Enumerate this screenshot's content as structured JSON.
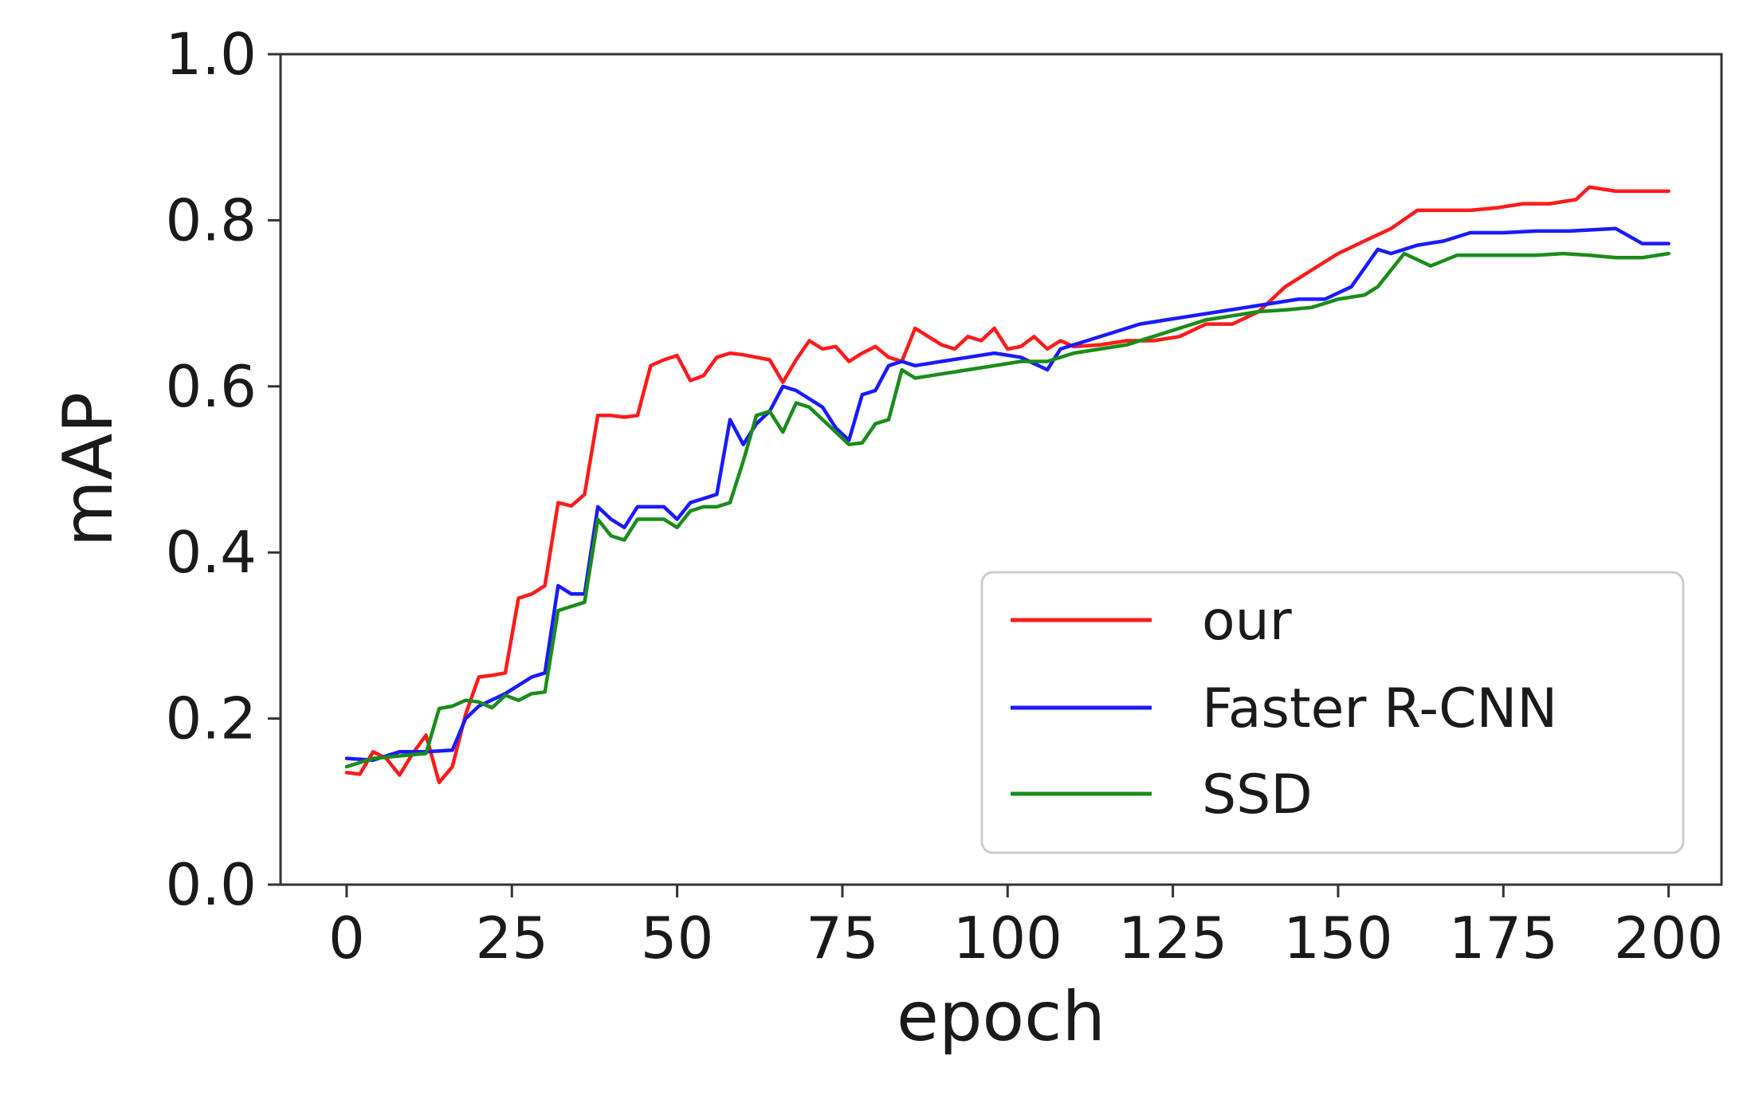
{
  "chart_data": {
    "type": "line",
    "title": "",
    "xlabel": "epoch",
    "ylabel": "mAP",
    "xlim": [
      -10,
      208
    ],
    "ylim": [
      0.0,
      1.0
    ],
    "xticks": [
      "0",
      "25",
      "50",
      "75",
      "100",
      "125",
      "150",
      "175",
      "200"
    ],
    "yticks": [
      "0.0",
      "0.2",
      "0.4",
      "0.6",
      "0.8",
      "1.0"
    ],
    "grid": false,
    "legend_position": "lower-right",
    "series": [
      {
        "name": "our",
        "color": "#ff1a1a",
        "x": [
          0,
          2,
          4,
          6,
          8,
          10,
          12,
          14,
          16,
          18,
          20,
          22,
          24,
          26,
          28,
          30,
          32,
          34,
          36,
          38,
          40,
          42,
          44,
          46,
          48,
          50,
          52,
          54,
          56,
          58,
          60,
          62,
          64,
          66,
          68,
          70,
          72,
          74,
          76,
          78,
          80,
          82,
          84,
          86,
          88,
          90,
          92,
          94,
          96,
          98,
          100,
          102,
          104,
          106,
          108,
          110,
          114,
          118,
          122,
          126,
          130,
          134,
          138,
          142,
          146,
          150,
          154,
          158,
          162,
          166,
          170,
          174,
          178,
          182,
          186,
          188,
          192,
          196,
          200
        ],
        "values": [
          0.135,
          0.133,
          0.16,
          0.152,
          0.132,
          0.158,
          0.18,
          0.123,
          0.142,
          0.205,
          0.25,
          0.252,
          0.255,
          0.345,
          0.35,
          0.36,
          0.46,
          0.456,
          0.47,
          0.565,
          0.565,
          0.563,
          0.565,
          0.625,
          0.632,
          0.637,
          0.607,
          0.613,
          0.635,
          0.64,
          0.638,
          0.635,
          0.632,
          0.605,
          0.632,
          0.655,
          0.645,
          0.648,
          0.63,
          0.64,
          0.648,
          0.635,
          0.63,
          0.67,
          0.66,
          0.65,
          0.645,
          0.66,
          0.655,
          0.67,
          0.645,
          0.648,
          0.66,
          0.645,
          0.655,
          0.648,
          0.65,
          0.655,
          0.655,
          0.66,
          0.675,
          0.675,
          0.69,
          0.72,
          0.74,
          0.76,
          0.775,
          0.79,
          0.812,
          0.812,
          0.812,
          0.815,
          0.82,
          0.82,
          0.825,
          0.84,
          0.835,
          0.835,
          0.835
        ]
      },
      {
        "name": "Faster R-CNN",
        "color": "#1a1aff",
        "x": [
          0,
          4,
          8,
          12,
          16,
          18,
          20,
          24,
          28,
          30,
          32,
          34,
          36,
          38,
          40,
          42,
          44,
          46,
          48,
          50,
          52,
          54,
          56,
          58,
          60,
          62,
          64,
          66,
          68,
          70,
          72,
          74,
          76,
          78,
          80,
          82,
          84,
          86,
          90,
          94,
          98,
          102,
          106,
          108,
          112,
          116,
          120,
          124,
          128,
          132,
          136,
          140,
          144,
          148,
          152,
          156,
          158,
          162,
          166,
          170,
          175,
          180,
          185,
          192,
          196,
          200
        ],
        "values": [
          0.152,
          0.15,
          0.16,
          0.16,
          0.162,
          0.2,
          0.215,
          0.23,
          0.25,
          0.255,
          0.36,
          0.35,
          0.35,
          0.455,
          0.44,
          0.43,
          0.455,
          0.455,
          0.455,
          0.44,
          0.46,
          0.465,
          0.47,
          0.56,
          0.53,
          0.555,
          0.57,
          0.6,
          0.595,
          0.585,
          0.575,
          0.55,
          0.535,
          0.59,
          0.595,
          0.625,
          0.63,
          0.625,
          0.63,
          0.635,
          0.64,
          0.635,
          0.62,
          0.645,
          0.655,
          0.665,
          0.675,
          0.68,
          0.685,
          0.69,
          0.695,
          0.7,
          0.705,
          0.705,
          0.72,
          0.765,
          0.76,
          0.77,
          0.775,
          0.785,
          0.785,
          0.787,
          0.787,
          0.79,
          0.772,
          0.772
        ]
      },
      {
        "name": "SSD",
        "color": "#1a8c1a",
        "x": [
          0,
          4,
          8,
          12,
          14,
          16,
          18,
          20,
          22,
          24,
          26,
          28,
          30,
          32,
          34,
          36,
          38,
          40,
          42,
          44,
          46,
          48,
          50,
          52,
          54,
          56,
          58,
          60,
          62,
          64,
          66,
          68,
          70,
          72,
          74,
          76,
          78,
          80,
          82,
          84,
          86,
          90,
          94,
          98,
          102,
          106,
          110,
          114,
          118,
          122,
          126,
          130,
          134,
          138,
          142,
          146,
          150,
          154,
          156,
          160,
          164,
          168,
          172,
          176,
          180,
          184,
          188,
          192,
          196,
          200
        ],
        "values": [
          0.142,
          0.152,
          0.155,
          0.158,
          0.212,
          0.215,
          0.222,
          0.22,
          0.213,
          0.228,
          0.222,
          0.23,
          0.232,
          0.33,
          0.335,
          0.34,
          0.44,
          0.42,
          0.415,
          0.44,
          0.44,
          0.44,
          0.43,
          0.45,
          0.455,
          0.455,
          0.46,
          0.51,
          0.565,
          0.57,
          0.545,
          0.58,
          0.575,
          0.56,
          0.545,
          0.53,
          0.532,
          0.555,
          0.56,
          0.62,
          0.61,
          0.615,
          0.62,
          0.625,
          0.63,
          0.63,
          0.64,
          0.645,
          0.65,
          0.66,
          0.67,
          0.68,
          0.685,
          0.69,
          0.692,
          0.695,
          0.705,
          0.71,
          0.72,
          0.76,
          0.745,
          0.758,
          0.758,
          0.758,
          0.758,
          0.76,
          0.758,
          0.755,
          0.755,
          0.76
        ]
      }
    ]
  }
}
